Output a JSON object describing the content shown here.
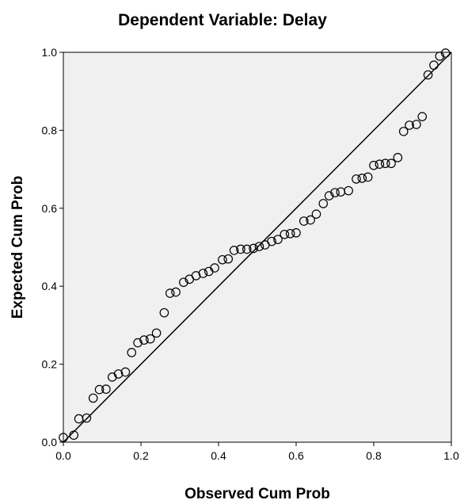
{
  "chart_data": {
    "type": "scatter",
    "title": "Dependent Variable: Delay",
    "xlabel": "Observed Cum Prob",
    "ylabel": "Expected Cum Prob",
    "xlim": [
      0,
      1
    ],
    "ylim": [
      0,
      1
    ],
    "x_ticks": [
      "0.0",
      "0.2",
      "0.4",
      "0.6",
      "0.8",
      "1.0"
    ],
    "y_ticks": [
      "0.0",
      "0.2",
      "0.4",
      "0.6",
      "0.8",
      "1.0"
    ],
    "reference_line": {
      "from": [
        0,
        0
      ],
      "to": [
        1,
        1
      ]
    },
    "grid": false,
    "legend": "none",
    "marker": "hollow-circle",
    "colors": {
      "plot_background": "#f0f0f0",
      "marker": "#000000",
      "line": "#000000",
      "frame": "#000000"
    },
    "points": [
      [
        0.0,
        0.012
      ],
      [
        0.027,
        0.018
      ],
      [
        0.04,
        0.06
      ],
      [
        0.06,
        0.062
      ],
      [
        0.077,
        0.113
      ],
      [
        0.093,
        0.135
      ],
      [
        0.11,
        0.136
      ],
      [
        0.126,
        0.167
      ],
      [
        0.142,
        0.175
      ],
      [
        0.16,
        0.18
      ],
      [
        0.176,
        0.23
      ],
      [
        0.192,
        0.255
      ],
      [
        0.208,
        0.262
      ],
      [
        0.224,
        0.265
      ],
      [
        0.24,
        0.28
      ],
      [
        0.26,
        0.332
      ],
      [
        0.275,
        0.382
      ],
      [
        0.29,
        0.385
      ],
      [
        0.31,
        0.41
      ],
      [
        0.325,
        0.418
      ],
      [
        0.342,
        0.427
      ],
      [
        0.36,
        0.433
      ],
      [
        0.375,
        0.438
      ],
      [
        0.39,
        0.447
      ],
      [
        0.41,
        0.468
      ],
      [
        0.425,
        0.47
      ],
      [
        0.44,
        0.492
      ],
      [
        0.457,
        0.495
      ],
      [
        0.473,
        0.495
      ],
      [
        0.49,
        0.497
      ],
      [
        0.505,
        0.502
      ],
      [
        0.52,
        0.506
      ],
      [
        0.537,
        0.515
      ],
      [
        0.553,
        0.52
      ],
      [
        0.57,
        0.533
      ],
      [
        0.585,
        0.535
      ],
      [
        0.6,
        0.537
      ],
      [
        0.62,
        0.567
      ],
      [
        0.637,
        0.57
      ],
      [
        0.652,
        0.585
      ],
      [
        0.67,
        0.612
      ],
      [
        0.685,
        0.632
      ],
      [
        0.7,
        0.64
      ],
      [
        0.715,
        0.642
      ],
      [
        0.735,
        0.645
      ],
      [
        0.755,
        0.675
      ],
      [
        0.77,
        0.677
      ],
      [
        0.785,
        0.68
      ],
      [
        0.8,
        0.71
      ],
      [
        0.815,
        0.713
      ],
      [
        0.83,
        0.715
      ],
      [
        0.845,
        0.715
      ],
      [
        0.862,
        0.73
      ],
      [
        0.877,
        0.797
      ],
      [
        0.892,
        0.813
      ],
      [
        0.91,
        0.815
      ],
      [
        0.925,
        0.835
      ],
      [
        0.94,
        0.942
      ],
      [
        0.955,
        0.967
      ],
      [
        0.97,
        0.99
      ],
      [
        0.985,
        0.998
      ]
    ]
  }
}
